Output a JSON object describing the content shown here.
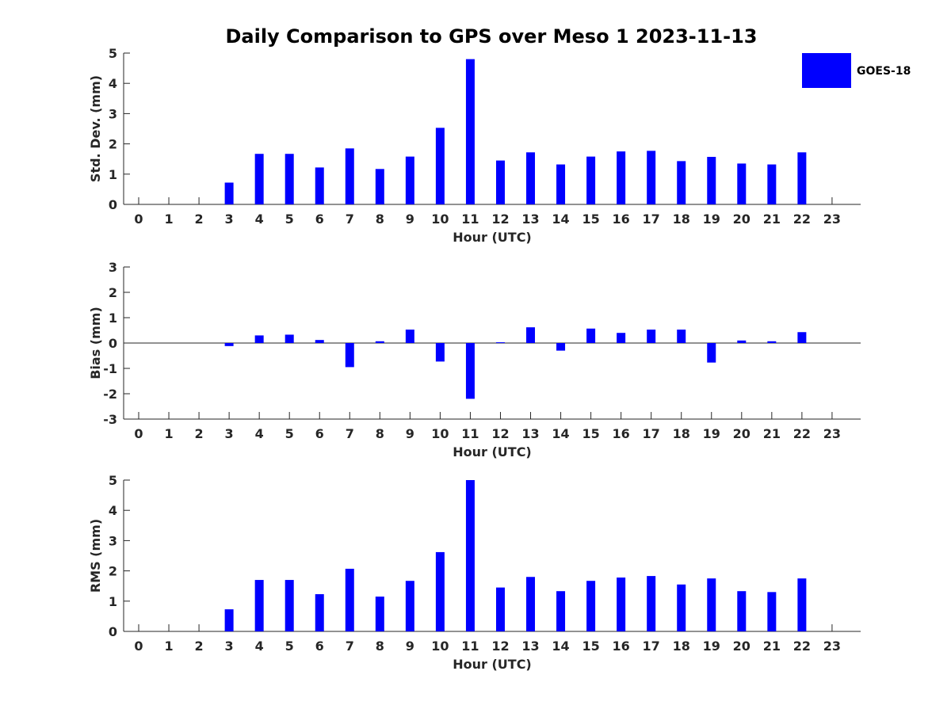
{
  "title": "Daily Comparison to GPS over Meso 1 2023-11-13",
  "legend": {
    "label": "GOES-18",
    "placement": "top-right"
  },
  "bar_color": "#0000ff",
  "chart_data": [
    {
      "type": "bar",
      "xlabel": "Hour (UTC)",
      "ylabel": "Std. Dev. (mm)",
      "ylim": [
        0,
        5
      ],
      "yticks": [
        "0",
        "1",
        "2",
        "3",
        "4",
        "5"
      ],
      "categories": [
        "0",
        "1",
        "2",
        "3",
        "4",
        "5",
        "6",
        "7",
        "8",
        "9",
        "10",
        "11",
        "12",
        "13",
        "14",
        "15",
        "16",
        "17",
        "18",
        "19",
        "20",
        "21",
        "22",
        "23"
      ],
      "series": [
        {
          "name": "GOES-18",
          "values": [
            null,
            null,
            null,
            0.72,
            1.67,
            1.67,
            1.22,
            1.85,
            1.17,
            1.58,
            2.53,
            4.8,
            1.45,
            1.72,
            1.32,
            1.58,
            1.75,
            1.77,
            1.43,
            1.57,
            1.35,
            1.32,
            1.72,
            null
          ]
        }
      ]
    },
    {
      "type": "bar",
      "xlabel": "Hour (UTC)",
      "ylabel": "Bias (mm)",
      "ylim": [
        -3,
        3
      ],
      "yticks": [
        "-3",
        "-2",
        "-1",
        "0",
        "1",
        "2",
        "3"
      ],
      "categories": [
        "0",
        "1",
        "2",
        "3",
        "4",
        "5",
        "6",
        "7",
        "8",
        "9",
        "10",
        "11",
        "12",
        "13",
        "14",
        "15",
        "16",
        "17",
        "18",
        "19",
        "20",
        "21",
        "22",
        "23"
      ],
      "series": [
        {
          "name": "GOES-18",
          "values": [
            null,
            null,
            null,
            -0.12,
            0.3,
            0.33,
            0.12,
            -0.95,
            0.07,
            0.53,
            -0.73,
            -2.2,
            0.03,
            0.62,
            -0.3,
            0.57,
            0.4,
            0.53,
            0.53,
            -0.77,
            0.1,
            0.07,
            0.43,
            null
          ]
        }
      ]
    },
    {
      "type": "bar",
      "xlabel": "Hour (UTC)",
      "ylabel": "RMS (mm)",
      "ylim": [
        0,
        5
      ],
      "yticks": [
        "0",
        "1",
        "2",
        "3",
        "4",
        "5"
      ],
      "categories": [
        "0",
        "1",
        "2",
        "3",
        "4",
        "5",
        "6",
        "7",
        "8",
        "9",
        "10",
        "11",
        "12",
        "13",
        "14",
        "15",
        "16",
        "17",
        "18",
        "19",
        "20",
        "21",
        "22",
        "23"
      ],
      "series": [
        {
          "name": "GOES-18",
          "values": [
            null,
            null,
            null,
            0.73,
            1.7,
            1.7,
            1.23,
            2.07,
            1.15,
            1.67,
            2.62,
            5.0,
            1.45,
            1.8,
            1.33,
            1.67,
            1.78,
            1.83,
            1.55,
            1.75,
            1.33,
            1.3,
            1.75,
            null
          ]
        }
      ]
    }
  ]
}
